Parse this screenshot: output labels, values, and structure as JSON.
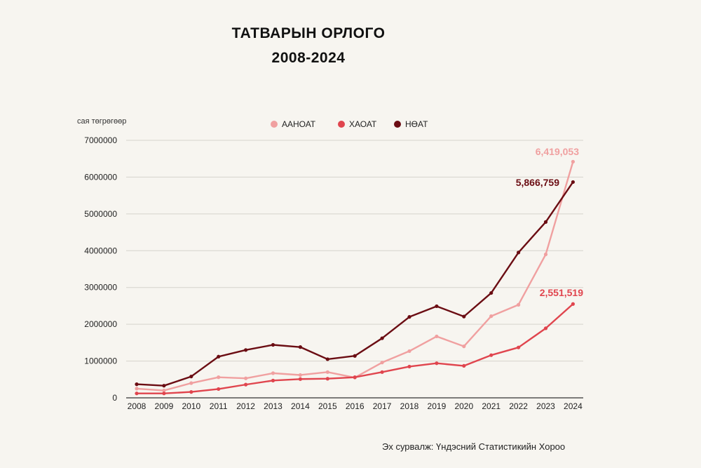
{
  "title_line1": "ТАТВАРЫН ОРЛОГО",
  "title_line2": "2008-2024",
  "source": "Эх сурвалж: Үндэсний Статистикийн Хороо",
  "chart_data": {
    "type": "line",
    "ylabel": "сая төгрөгөөр",
    "ylim": [
      0,
      7000000
    ],
    "yticks": [
      "0",
      "1000000",
      "2000000",
      "3000000",
      "4000000",
      "5000000",
      "6000000",
      "7000000"
    ],
    "grid": true,
    "legend_position": "top",
    "x": [
      "2008",
      "2009",
      "2010",
      "2011",
      "2012",
      "2013",
      "2014",
      "2015",
      "2016",
      "2017",
      "2018",
      "2019",
      "2020",
      "2021",
      "2022",
      "2023",
      "2024"
    ],
    "series": [
      {
        "name": "ААНОАТ",
        "color": "#f0a0a0",
        "values": [
          250000,
          200000,
          400000,
          560000,
          530000,
          670000,
          620000,
          700000,
          550000,
          960000,
          1270000,
          1670000,
          1400000,
          2220000,
          2530000,
          3900000,
          6419053
        ]
      },
      {
        "name": "ХАОАТ",
        "color": "#e0454e",
        "values": [
          120000,
          120000,
          160000,
          240000,
          360000,
          470000,
          510000,
          520000,
          560000,
          700000,
          850000,
          940000,
          870000,
          1160000,
          1370000,
          1890000,
          2551519
        ]
      },
      {
        "name": "НӨАТ",
        "color": "#6b0d13",
        "values": [
          370000,
          330000,
          580000,
          1120000,
          1300000,
          1440000,
          1380000,
          1050000,
          1140000,
          1620000,
          2200000,
          2490000,
          2210000,
          2850000,
          3950000,
          4780000,
          5866759
        ]
      }
    ],
    "annotations": [
      {
        "series": "ААНОАТ",
        "text": "6,419,053",
        "color": "#f0a0a0"
      },
      {
        "series": "НӨАТ",
        "text": "5,866,759",
        "color": "#6b0d13"
      },
      {
        "series": "ХАОАТ",
        "text": "2,551,519",
        "color": "#e0454e"
      }
    ]
  }
}
